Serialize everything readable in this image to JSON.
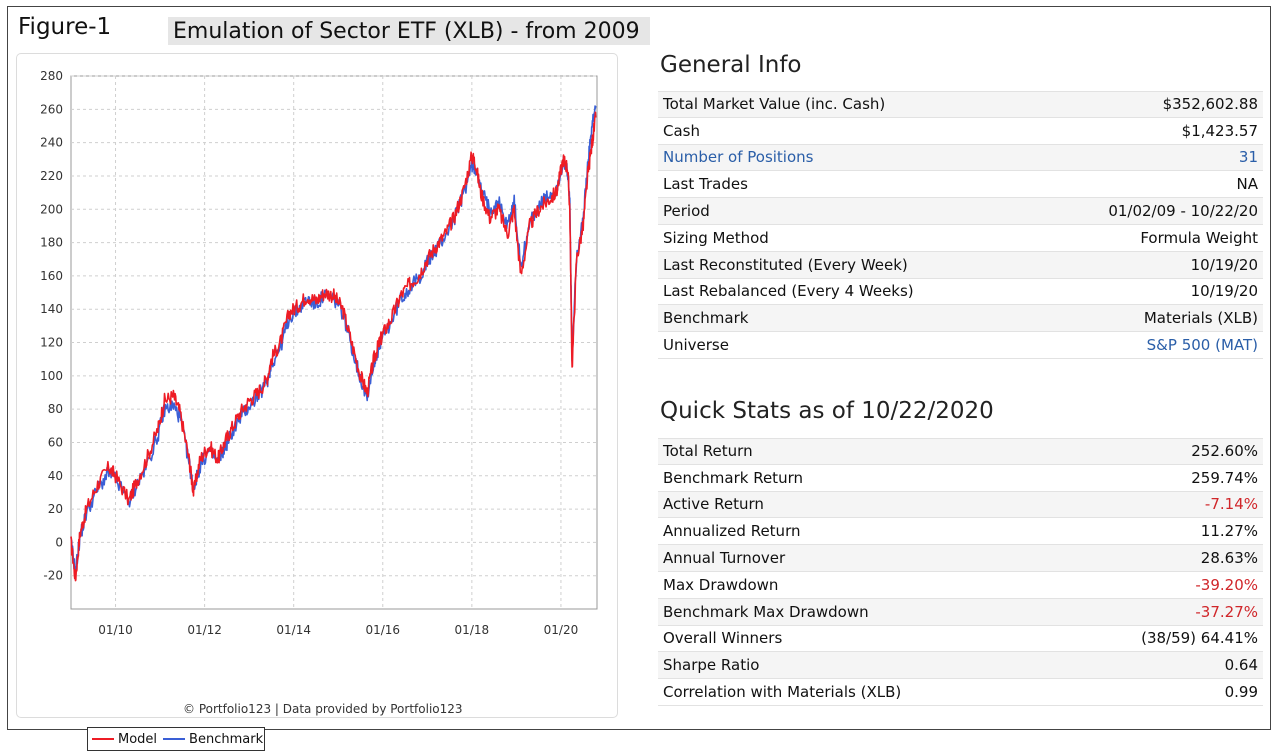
{
  "figure_label": "Figure-1",
  "figure_title": "Emulation of Sector ETF (XLB) - from 2009",
  "chart_credit": "© Portfolio123 | Data provided by Portfolio123",
  "colors": {
    "model": "#ee1c25",
    "benchmark": "#3a5fd6",
    "grid": "#cfcfcf",
    "negative": "#d0262a",
    "link": "#2a5ea8"
  },
  "chart_data": {
    "type": "line",
    "title": "",
    "xlabel": "",
    "ylabel": "",
    "ylim": [
      -40,
      280
    ],
    "y_ticks": [
      "280",
      "260",
      "240",
      "220",
      "200",
      "180",
      "160",
      "140",
      "120",
      "100",
      "80",
      "60",
      "40",
      "20",
      "0",
      "-20"
    ],
    "x_ticks": [
      "01/10",
      "01/12",
      "01/14",
      "01/16",
      "01/18",
      "01/20"
    ],
    "x_tick_years": [
      2010,
      2012,
      2014,
      2016,
      2018,
      2020
    ],
    "xlim_years": [
      2009.0,
      2020.81
    ],
    "grid": true,
    "legend_position": "bottom-left",
    "series": [
      {
        "name": "Model",
        "x": [
          2009.0,
          2009.1,
          2009.2,
          2009.35,
          2009.6,
          2009.85,
          2010.0,
          2010.3,
          2010.45,
          2010.7,
          2010.95,
          2011.1,
          2011.3,
          2011.45,
          2011.65,
          2011.75,
          2011.9,
          2012.1,
          2012.3,
          2012.45,
          2012.6,
          2012.8,
          2013.0,
          2013.2,
          2013.4,
          2013.5,
          2013.7,
          2013.9,
          2014.1,
          2014.3,
          2014.5,
          2014.7,
          2014.9,
          2015.1,
          2015.3,
          2015.5,
          2015.65,
          2015.8,
          2015.9,
          2016.0,
          2016.2,
          2016.4,
          2016.6,
          2016.8,
          2017.0,
          2017.2,
          2017.4,
          2017.6,
          2017.8,
          2018.0,
          2018.08,
          2018.2,
          2018.4,
          2018.6,
          2018.8,
          2018.95,
          2019.1,
          2019.3,
          2019.5,
          2019.7,
          2019.9,
          2020.05,
          2020.15,
          2020.2,
          2020.25,
          2020.35,
          2020.5,
          2020.6,
          2020.7,
          2020.78
        ],
        "y": [
          0,
          -22,
          5,
          20,
          35,
          45,
          40,
          25,
          35,
          50,
          68,
          85,
          88,
          78,
          50,
          30,
          50,
          58,
          50,
          60,
          68,
          78,
          85,
          90,
          98,
          110,
          120,
          138,
          142,
          148,
          145,
          150,
          148,
          140,
          120,
          100,
          90,
          110,
          118,
          125,
          135,
          148,
          155,
          160,
          170,
          178,
          185,
          195,
          210,
          232,
          228,
          210,
          195,
          200,
          185,
          200,
          160,
          190,
          200,
          205,
          210,
          230,
          225,
          200,
          104,
          170,
          190,
          220,
          240,
          255
        ]
      },
      {
        "name": "Benchmark",
        "x": [
          2009.0,
          2009.1,
          2009.2,
          2009.35,
          2009.6,
          2009.85,
          2010.0,
          2010.3,
          2010.45,
          2010.7,
          2010.95,
          2011.1,
          2011.3,
          2011.45,
          2011.65,
          2011.75,
          2011.9,
          2012.1,
          2012.3,
          2012.45,
          2012.6,
          2012.8,
          2013.0,
          2013.2,
          2013.4,
          2013.5,
          2013.7,
          2013.9,
          2014.1,
          2014.3,
          2014.5,
          2014.7,
          2014.9,
          2015.1,
          2015.3,
          2015.5,
          2015.65,
          2015.8,
          2015.9,
          2016.0,
          2016.2,
          2016.4,
          2016.6,
          2016.8,
          2017.0,
          2017.2,
          2017.4,
          2017.6,
          2017.8,
          2018.0,
          2018.08,
          2018.2,
          2018.4,
          2018.6,
          2018.8,
          2018.95,
          2019.1,
          2019.3,
          2019.5,
          2019.7,
          2019.9,
          2020.05,
          2020.15,
          2020.2,
          2020.25,
          2020.35,
          2020.5,
          2020.6,
          2020.7,
          2020.78
        ],
        "y": [
          0,
          -18,
          3,
          18,
          32,
          42,
          38,
          24,
          33,
          46,
          64,
          80,
          82,
          75,
          48,
          32,
          46,
          55,
          48,
          57,
          65,
          75,
          82,
          88,
          96,
          107,
          117,
          135,
          140,
          146,
          143,
          148,
          146,
          138,
          118,
          98,
          88,
          108,
          116,
          123,
          133,
          146,
          153,
          158,
          168,
          176,
          184,
          194,
          208,
          226,
          225,
          212,
          200,
          205,
          190,
          205,
          165,
          192,
          202,
          207,
          212,
          228,
          222,
          205,
          110,
          172,
          195,
          225,
          250,
          262
        ]
      }
    ]
  },
  "general_info": {
    "title": "General Info",
    "rows": [
      {
        "label": "Total Market Value (inc. Cash)",
        "value": "$352,602.88"
      },
      {
        "label": "Cash",
        "value": "$1,423.57"
      },
      {
        "label": "Number of Positions",
        "value": "31"
      },
      {
        "label": "Last Trades",
        "value": "NA"
      },
      {
        "label": "Period",
        "value": "01/02/09 - 10/22/20"
      },
      {
        "label": "Sizing Method",
        "value": "Formula Weight"
      },
      {
        "label": "Last Reconstituted (Every Week)",
        "value": "10/19/20"
      },
      {
        "label": "Last Rebalanced (Every 4 Weeks)",
        "value": "10/19/20"
      },
      {
        "label": "Benchmark",
        "value": "Materials (XLB)"
      },
      {
        "label": "Universe",
        "value": "S&P 500 (MAT)"
      }
    ]
  },
  "quick_stats": {
    "title": "Quick Stats as of 10/22/2020",
    "rows": [
      {
        "label": "Total Return",
        "value": "252.60%"
      },
      {
        "label": "Benchmark Return",
        "value": "259.74%"
      },
      {
        "label": "Active Return",
        "value": "-7.14%"
      },
      {
        "label": "Annualized Return",
        "value": "11.27%"
      },
      {
        "label": "Annual Turnover",
        "value": "28.63%"
      },
      {
        "label": "Max Drawdown",
        "value": "-39.20%"
      },
      {
        "label": "Benchmark Max Drawdown",
        "value": "-37.27%"
      },
      {
        "label": "Overall Winners",
        "value": "(38/59) 64.41%"
      },
      {
        "label": "Sharpe Ratio",
        "value": "0.64"
      },
      {
        "label": "Correlation with Materials (XLB)",
        "value": "0.99"
      }
    ]
  }
}
